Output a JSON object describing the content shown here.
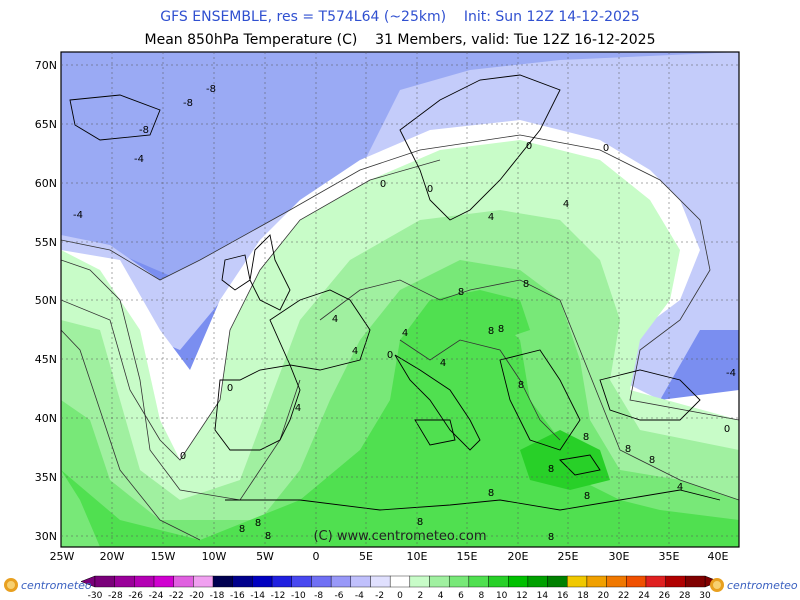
{
  "title_line1": "GFS ENSEMBLE, res = T574L64 (~25km)    Init: Sun 12Z 14-12-2025",
  "title_line2": "Mean 850hPa Temperature (C)    31 Members, valid: Tue 12Z 16-12-2025",
  "watermark": "(C) www.centrometeo.com",
  "logo_left": "centrometeo",
  "logo_right": "centrometeo",
  "lat_labels": [
    "70N",
    "65N",
    "60N",
    "55N",
    "50N",
    "45N",
    "40N",
    "35N",
    "30N"
  ],
  "lon_labels": [
    "25W",
    "20W",
    "15W",
    "10W",
    "5W",
    "0",
    "5E",
    "10E",
    "15E",
    "20E",
    "25E",
    "30E",
    "35E",
    "40E"
  ],
  "contour_labels": [
    "-8",
    "-8",
    "-8",
    "-4",
    "-4",
    "-4",
    "0",
    "0",
    "0",
    "0",
    "0",
    "0",
    "0",
    "0",
    "4",
    "4",
    "4",
    "4",
    "4",
    "4",
    "4",
    "4",
    "8",
    "8",
    "8",
    "8",
    "8",
    "8",
    "8",
    "8",
    "8",
    "8",
    "8",
    "8",
    "8",
    "8",
    "8",
    "8"
  ],
  "colorbar": {
    "labels": [
      "-30",
      "-28",
      "-26",
      "-24",
      "-22",
      "-20",
      "-18",
      "-16",
      "-14",
      "-12",
      "-10",
      "-8",
      "-6",
      "-4",
      "-2",
      "0",
      "2",
      "4",
      "6",
      "8",
      "10",
      "12",
      "14",
      "16",
      "18",
      "20",
      "22",
      "24",
      "26",
      "28",
      "30"
    ],
    "colors": [
      "#7a007a",
      "#9a009a",
      "#b400b4",
      "#d000d0",
      "#e060e0",
      "#f0a0f0",
      "#000050",
      "#00008c",
      "#0000c0",
      "#2020e0",
      "#4848f0",
      "#7070f4",
      "#9898f8",
      "#c0c0fc",
      "#e0e0fe",
      "#ffffff",
      "#c8fcc8",
      "#a0f0a0",
      "#78e878",
      "#50e050",
      "#28d028",
      "#00c000",
      "#00a000",
      "#008000",
      "#f0c800",
      "#f0a000",
      "#f07800",
      "#f05000",
      "#e02020",
      "#b00000",
      "#800000"
    ]
  },
  "colors": {
    "ocean_fill": "#ccd8f8",
    "title_blue": "#3050d0"
  }
}
